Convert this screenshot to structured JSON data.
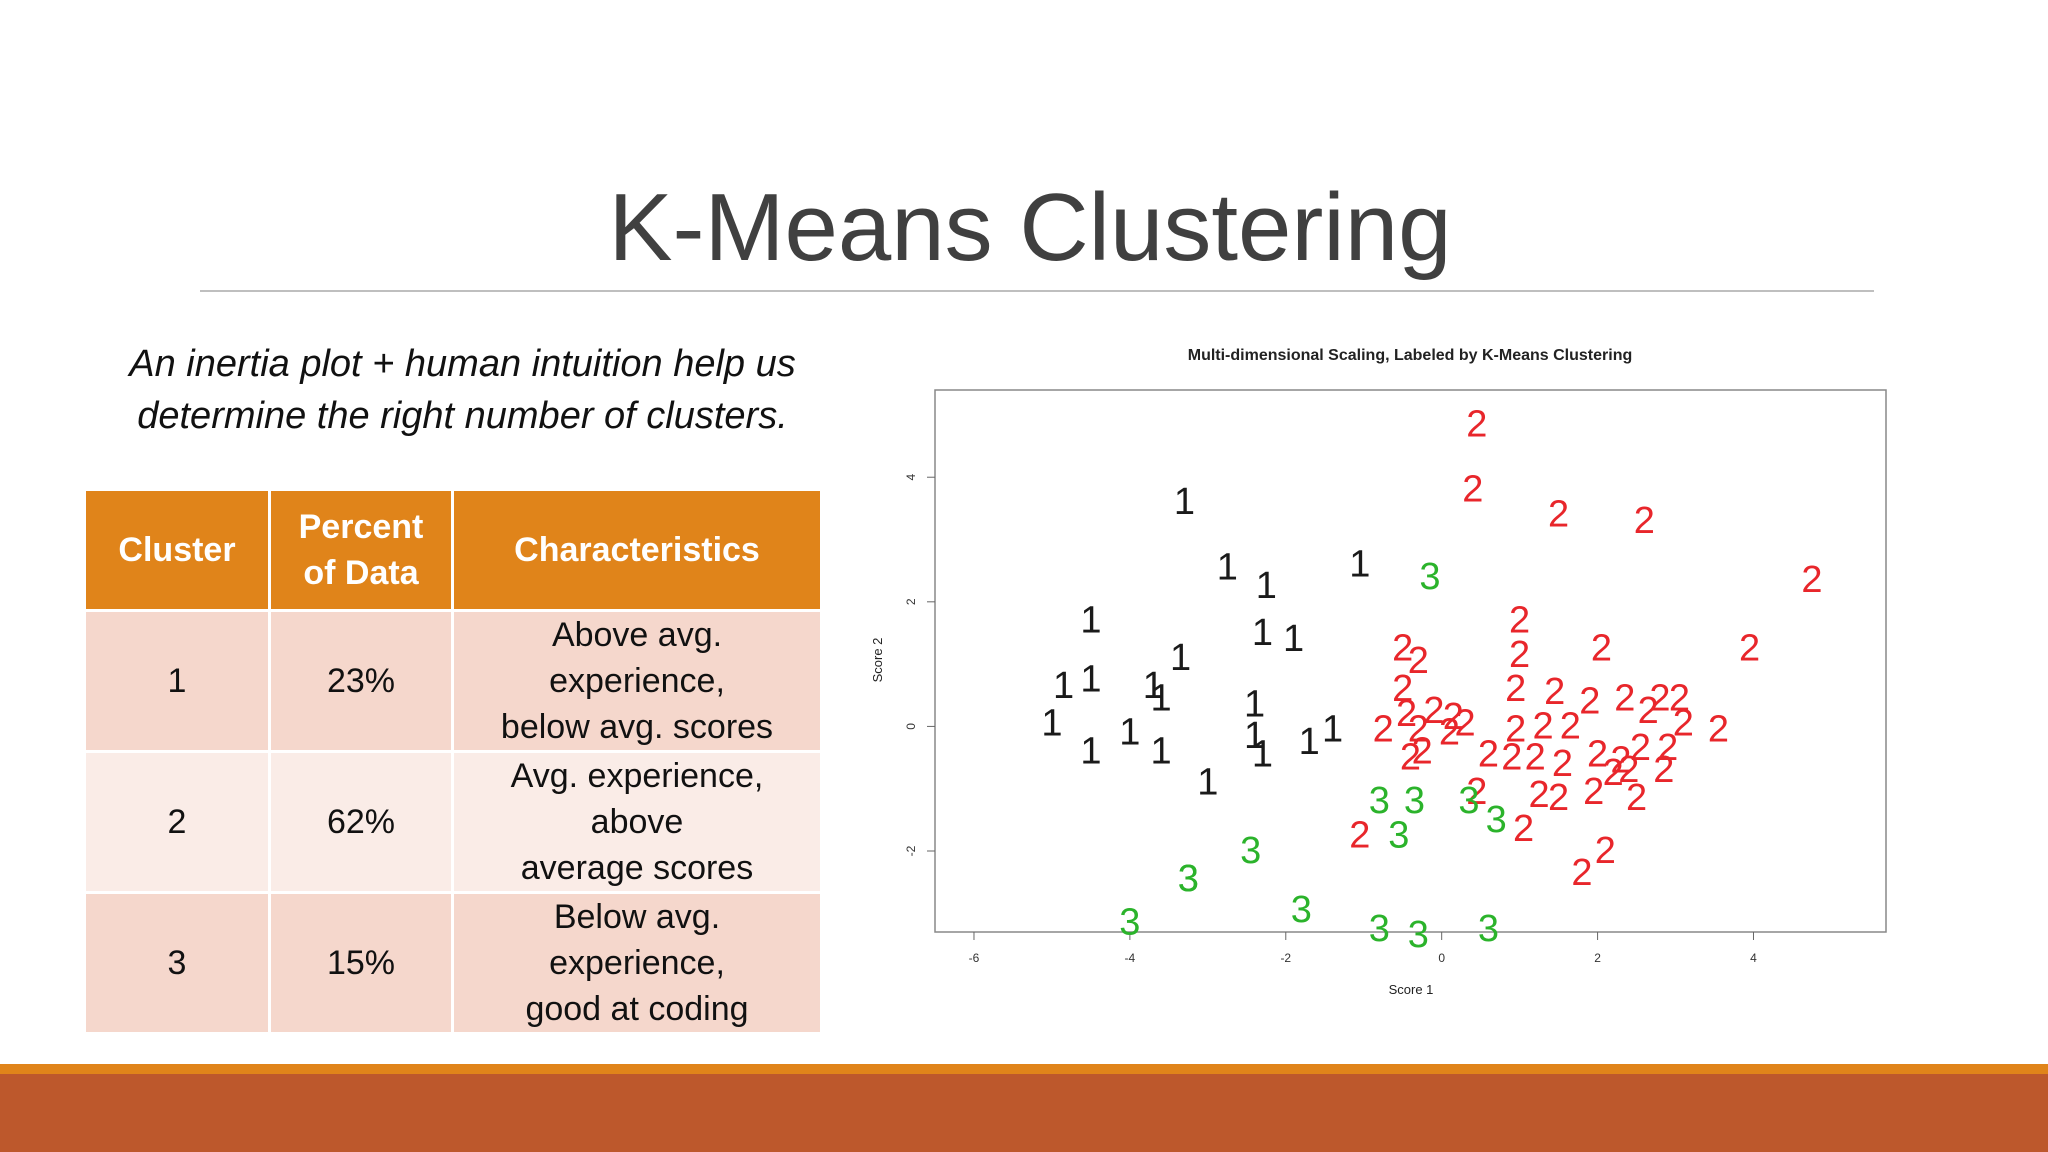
{
  "slide": {
    "title": "K-Means Clustering",
    "subtitle_line1": "An inertia plot + human intuition help us",
    "subtitle_line2": "determine the right number of clusters."
  },
  "table": {
    "headers": {
      "cluster": "Cluster",
      "percent_line1": "Percent",
      "percent_line2": "of Data",
      "characteristics": "Characteristics"
    },
    "rows": [
      {
        "cluster": "1",
        "percent": "23%",
        "char_line1": "Above avg. experience,",
        "char_line2": "below avg. scores"
      },
      {
        "cluster": "2",
        "percent": "62%",
        "char_line1": "Avg. experience, above",
        "char_line2": "average scores"
      },
      {
        "cluster": "3",
        "percent": "15%",
        "char_line1": "Below avg. experience,",
        "char_line2": "good at coding"
      }
    ]
  },
  "colors": {
    "header_orange": "#e0841a",
    "row_dark": "#f5d7cc",
    "row_light": "#faece7",
    "footer_stripe": "#e0841a",
    "footer_band": "#bd582c",
    "cluster1": "#1a1a1a",
    "cluster2": "#e8262b",
    "cluster3": "#2bb32b"
  },
  "chart_data": {
    "type": "scatter",
    "title": "Multi-dimensional Scaling, Labeled by K-Means Clustering",
    "xlabel": "Score 1",
    "ylabel": "Score 2",
    "xlim": [
      -6.5,
      5.7
    ],
    "ylim": [
      -3.3,
      5.4
    ],
    "x_ticks": [
      -6,
      -4,
      -2,
      0,
      2,
      4
    ],
    "y_ticks": [
      -2,
      0,
      2,
      4
    ],
    "grid": false,
    "legend": "none",
    "series": [
      {
        "name": "1",
        "color": "#1a1a1a",
        "points": [
          [
            -3.3,
            3.6
          ],
          [
            -2.75,
            2.55
          ],
          [
            -2.25,
            2.25
          ],
          [
            -1.05,
            2.6
          ],
          [
            -4.5,
            1.7
          ],
          [
            -2.3,
            1.5
          ],
          [
            -1.9,
            1.4
          ],
          [
            -4.85,
            0.65
          ],
          [
            -4.5,
            0.75
          ],
          [
            -3.7,
            0.65
          ],
          [
            -3.35,
            1.1
          ],
          [
            -3.6,
            0.45
          ],
          [
            -5.0,
            0.05
          ],
          [
            -4.5,
            -0.4
          ],
          [
            -4.0,
            -0.1
          ],
          [
            -3.6,
            -0.4
          ],
          [
            -2.4,
            0.35
          ],
          [
            -2.4,
            -0.15
          ],
          [
            -2.3,
            -0.45
          ],
          [
            -1.7,
            -0.25
          ],
          [
            -1.4,
            -0.05
          ],
          [
            -3.0,
            -0.9
          ]
        ]
      },
      {
        "name": "2",
        "color": "#e8262b",
        "points": [
          [
            0.45,
            4.85
          ],
          [
            0.4,
            3.8
          ],
          [
            1.5,
            3.4
          ],
          [
            2.6,
            3.3
          ],
          [
            4.75,
            2.35
          ],
          [
            3.95,
            1.25
          ],
          [
            1.0,
            1.7
          ],
          [
            1.0,
            1.15
          ],
          [
            2.05,
            1.25
          ],
          [
            -0.5,
            1.25
          ],
          [
            -0.3,
            1.05
          ],
          [
            -0.5,
            0.6
          ],
          [
            0.95,
            0.6
          ],
          [
            1.45,
            0.55
          ],
          [
            1.9,
            0.4
          ],
          [
            2.35,
            0.45
          ],
          [
            2.8,
            0.45
          ],
          [
            3.05,
            0.45
          ],
          [
            -0.45,
            0.2
          ],
          [
            -0.1,
            0.25
          ],
          [
            0.15,
            0.15
          ],
          [
            0.3,
            0.05
          ],
          [
            -0.75,
            -0.05
          ],
          [
            -0.3,
            -0.05
          ],
          [
            0.1,
            -0.1
          ],
          [
            0.95,
            -0.05
          ],
          [
            1.3,
            0.0
          ],
          [
            1.65,
            0.0
          ],
          [
            2.65,
            0.25
          ],
          [
            3.1,
            0.05
          ],
          [
            3.55,
            -0.05
          ],
          [
            -0.25,
            -0.4
          ],
          [
            -0.4,
            -0.5
          ],
          [
            0.6,
            -0.45
          ],
          [
            0.9,
            -0.5
          ],
          [
            1.2,
            -0.5
          ],
          [
            1.55,
            -0.6
          ],
          [
            2.0,
            -0.45
          ],
          [
            2.3,
            -0.55
          ],
          [
            2.55,
            -0.35
          ],
          [
            2.9,
            -0.35
          ],
          [
            2.2,
            -0.75
          ],
          [
            2.4,
            -0.7
          ],
          [
            2.85,
            -0.7
          ],
          [
            0.45,
            -1.05
          ],
          [
            1.25,
            -1.1
          ],
          [
            1.5,
            -1.15
          ],
          [
            1.95,
            -1.05
          ],
          [
            2.5,
            -1.15
          ],
          [
            -1.05,
            -1.75
          ],
          [
            1.05,
            -1.65
          ],
          [
            2.1,
            -2.0
          ],
          [
            1.8,
            -2.35
          ]
        ]
      },
      {
        "name": "3",
        "color": "#2bb32b",
        "points": [
          [
            -0.15,
            2.4
          ],
          [
            -0.8,
            -1.2
          ],
          [
            -0.35,
            -1.2
          ],
          [
            0.35,
            -1.2
          ],
          [
            0.7,
            -1.5
          ],
          [
            -0.55,
            -1.75
          ],
          [
            -2.45,
            -2.0
          ],
          [
            -3.25,
            -2.45
          ],
          [
            -3.25,
            -2.45
          ],
          [
            -1.8,
            -2.95
          ],
          [
            -4.0,
            -3.15
          ],
          [
            -0.8,
            -3.25
          ],
          [
            -0.3,
            -3.35
          ],
          [
            0.6,
            -3.25
          ]
        ]
      }
    ]
  }
}
